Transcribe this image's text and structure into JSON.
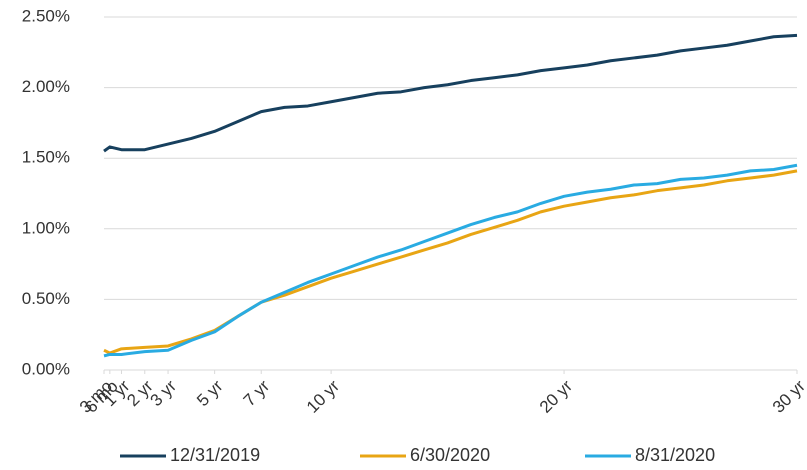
{
  "chart_data": {
    "type": "line",
    "x": [
      0.25,
      0.5,
      1,
      2,
      3,
      4,
      5,
      6,
      7,
      8,
      9,
      10,
      11,
      12,
      13,
      14,
      15,
      16,
      17,
      18,
      19,
      20,
      21,
      22,
      23,
      24,
      25,
      26,
      27,
      28,
      29,
      30
    ],
    "series": [
      {
        "name": "12/31/2019",
        "color": "#17405e",
        "values": [
          1.55,
          1.58,
          1.56,
          1.56,
          1.6,
          1.64,
          1.69,
          1.76,
          1.83,
          1.86,
          1.87,
          1.9,
          1.93,
          1.96,
          1.97,
          2.0,
          2.02,
          2.05,
          2.07,
          2.09,
          2.12,
          2.14,
          2.16,
          2.19,
          2.21,
          2.23,
          2.26,
          2.28,
          2.3,
          2.33,
          2.36,
          2.37
        ]
      },
      {
        "name": "6/30/2020",
        "color": "#e8a514",
        "values": [
          0.14,
          0.12,
          0.15,
          0.16,
          0.17,
          0.22,
          0.28,
          0.38,
          0.48,
          0.53,
          0.59,
          0.65,
          0.7,
          0.75,
          0.8,
          0.85,
          0.9,
          0.96,
          1.01,
          1.06,
          1.12,
          1.16,
          1.19,
          1.22,
          1.24,
          1.27,
          1.29,
          1.31,
          1.34,
          1.36,
          1.38,
          1.41
        ]
      },
      {
        "name": "8/31/2020",
        "color": "#29abe2",
        "values": [
          0.1,
          0.11,
          0.11,
          0.13,
          0.14,
          0.21,
          0.27,
          0.38,
          0.48,
          0.55,
          0.62,
          0.68,
          0.74,
          0.8,
          0.85,
          0.91,
          0.97,
          1.03,
          1.08,
          1.12,
          1.18,
          1.23,
          1.26,
          1.28,
          1.31,
          1.32,
          1.35,
          1.36,
          1.38,
          1.41,
          1.42,
          1.45
        ]
      }
    ],
    "xlim": [
      0.25,
      30
    ],
    "xticks": [
      {
        "value": 0.25,
        "label": "3 mo"
      },
      {
        "value": 0.5,
        "label": "6 mo"
      },
      {
        "value": 1,
        "label": "1 yr"
      },
      {
        "value": 2,
        "label": "2 yr"
      },
      {
        "value": 3,
        "label": "3 yr"
      },
      {
        "value": 5,
        "label": "5 yr"
      },
      {
        "value": 7,
        "label": "7 yr"
      },
      {
        "value": 10,
        "label": "10 yr"
      },
      {
        "value": 20,
        "label": "20 yr"
      },
      {
        "value": 30,
        "label": "30 yr"
      }
    ],
    "ylim": [
      0,
      2.5
    ],
    "yticks": [
      {
        "value": 0,
        "label": "0.00%"
      },
      {
        "value": 0.5,
        "label": "0.50%"
      },
      {
        "value": 1,
        "label": "1.00%"
      },
      {
        "value": 1.5,
        "label": "1.50%"
      },
      {
        "value": 2,
        "label": "2.00%"
      },
      {
        "value": 2.5,
        "label": "2.50%"
      }
    ],
    "grid": true,
    "legend": "bottom"
  }
}
